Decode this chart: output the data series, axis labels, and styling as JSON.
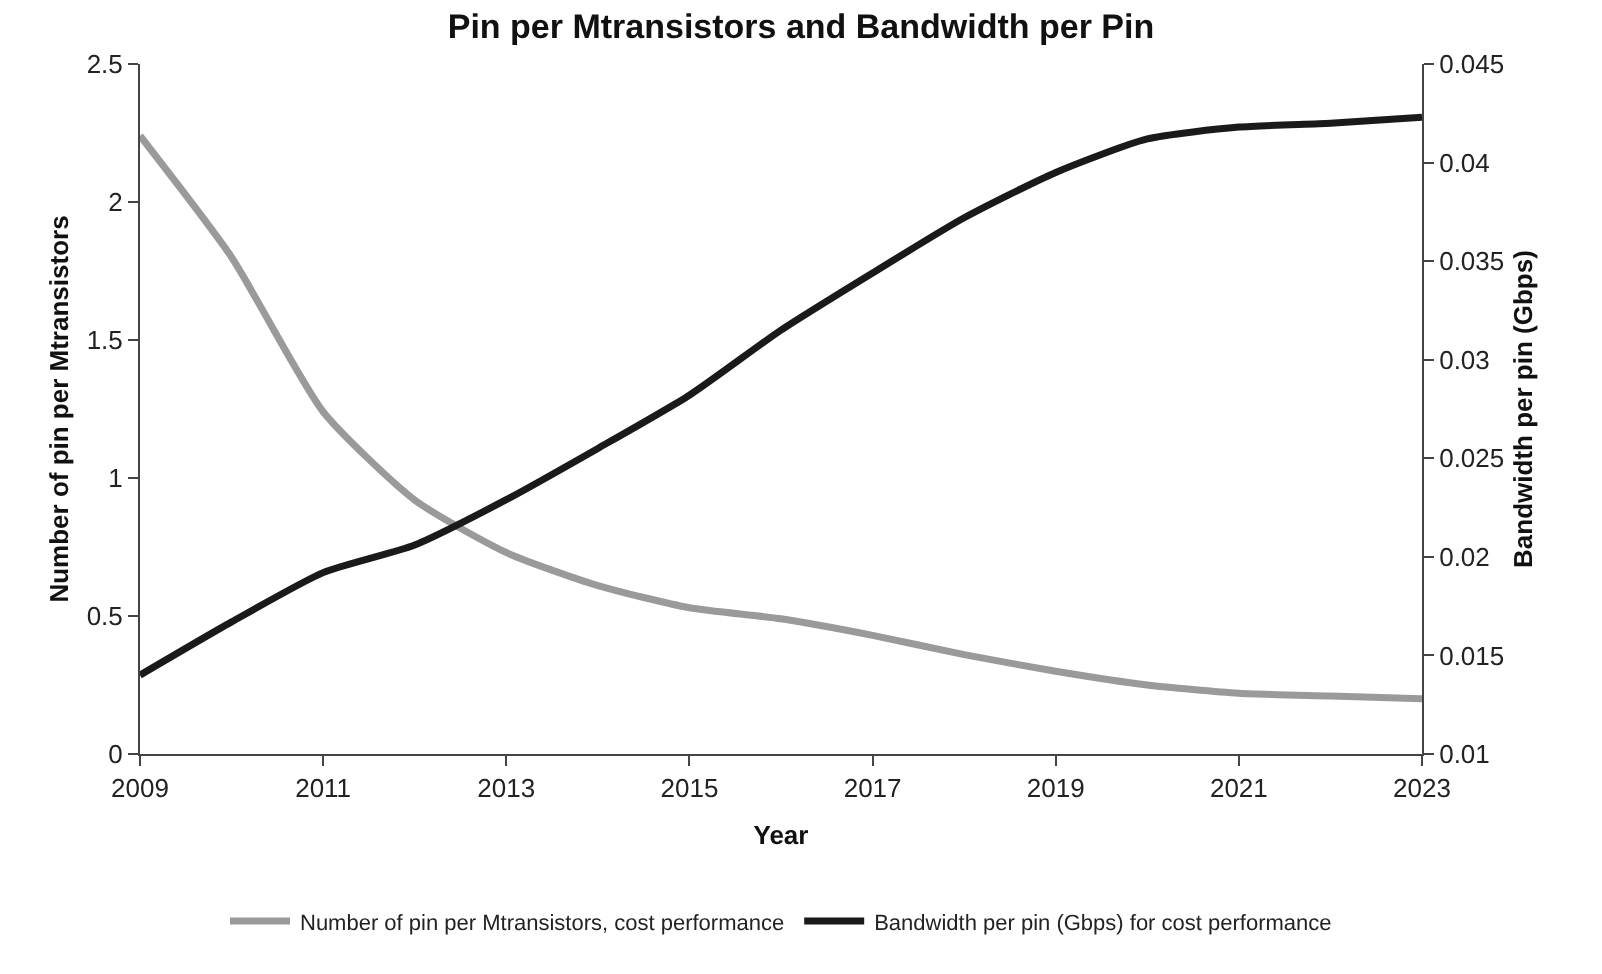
{
  "chart_data": {
    "type": "line",
    "title": "Pin per Mtransistors and Bandwidth per Pin",
    "xlabel": "Year",
    "ylabel": "Number of pin per Mtransistors",
    "y2label": "Bandwidth per pin (Gbps)",
    "x": [
      2009,
      2010,
      2011,
      2012,
      2013,
      2014,
      2015,
      2016,
      2017,
      2018,
      2019,
      2020,
      2021,
      2022,
      2023
    ],
    "series": [
      {
        "name": "Number of pin per Mtransistors, cost performance",
        "color": "#9a9a9a",
        "values": [
          2.24,
          1.8,
          1.24,
          0.92,
          0.73,
          0.61,
          0.53,
          0.49,
          0.43,
          0.36,
          0.3,
          0.25,
          0.22,
          0.21,
          0.2
        ]
      },
      {
        "name": "Bandwidth per pin (Gbps) for cost performance",
        "color": "#1a1a1a",
        "axis": "y2",
        "values": [
          0.014,
          0.0167,
          0.0192,
          0.0206,
          0.0229,
          0.0255,
          0.0282,
          0.0315,
          0.0344,
          0.0372,
          0.0395,
          0.0412,
          0.0418,
          0.042,
          0.0423
        ]
      }
    ],
    "xlim": [
      2009,
      2023
    ],
    "xticks": [
      2009,
      2011,
      2013,
      2015,
      2017,
      2019,
      2021,
      2023
    ],
    "ylim": [
      0,
      2.5
    ],
    "yticks": [
      0,
      0.5,
      1,
      1.5,
      2,
      2.5
    ],
    "y2lim": [
      0.01,
      0.045
    ],
    "y2ticks": [
      0.01,
      0.015,
      0.02,
      0.025,
      0.03,
      0.035,
      0.04,
      0.045
    ],
    "grid": false,
    "legend": "bottom",
    "marker": "none",
    "line_style": "solid"
  }
}
